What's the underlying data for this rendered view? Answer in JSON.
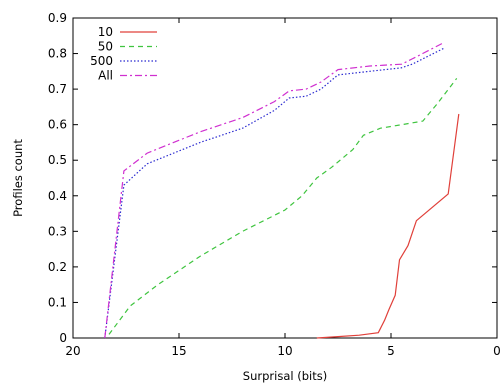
{
  "chart_data": {
    "type": "line",
    "xlabel": "Surprisal (bits)",
    "ylabel": "Profiles count",
    "xlim": [
      20,
      0
    ],
    "ylim": [
      0,
      0.9
    ],
    "x_reversed": true,
    "xticks": [
      20,
      15,
      10,
      5,
      0
    ],
    "yticks": [
      0,
      0.1,
      0.2,
      0.3,
      0.4,
      0.5,
      0.6,
      0.7,
      0.8,
      0.9
    ],
    "grid": false,
    "legend": "top-left",
    "series": [
      {
        "name": "10",
        "color": "#e0403a",
        "dash": "solid",
        "points": [
          [
            8.5,
            0
          ],
          [
            7.5,
            0.004
          ],
          [
            6.5,
            0.008
          ],
          [
            5.6,
            0.015
          ],
          [
            5.3,
            0.05
          ],
          [
            5.1,
            0.08
          ],
          [
            4.8,
            0.12
          ],
          [
            4.6,
            0.22
          ],
          [
            4.2,
            0.26
          ],
          [
            3.8,
            0.33
          ],
          [
            3.4,
            0.35
          ],
          [
            2.3,
            0.405
          ],
          [
            1.8,
            0.63
          ]
        ]
      },
      {
        "name": "50",
        "color": "#3fc43f",
        "dash": "dash",
        "points": [
          [
            18.3,
            0.01
          ],
          [
            17.3,
            0.09
          ],
          [
            16,
            0.15
          ],
          [
            14,
            0.23
          ],
          [
            12,
            0.3
          ],
          [
            10,
            0.36
          ],
          [
            9.2,
            0.4
          ],
          [
            8.5,
            0.45
          ],
          [
            7.8,
            0.48
          ],
          [
            6.8,
            0.53
          ],
          [
            6.3,
            0.57
          ],
          [
            5.5,
            0.59
          ],
          [
            4.5,
            0.6
          ],
          [
            3.5,
            0.61
          ],
          [
            2.8,
            0.66
          ],
          [
            1.9,
            0.73
          ]
        ]
      },
      {
        "name": "500",
        "color": "#2a2ad0",
        "dash": "dot",
        "points": [
          [
            18.5,
            0
          ],
          [
            17.6,
            0.43
          ],
          [
            16.5,
            0.49
          ],
          [
            14,
            0.55
          ],
          [
            12,
            0.59
          ],
          [
            10.5,
            0.64
          ],
          [
            9.8,
            0.675
          ],
          [
            9,
            0.68
          ],
          [
            8.3,
            0.7
          ],
          [
            7.5,
            0.74
          ],
          [
            6,
            0.75
          ],
          [
            4.5,
            0.76
          ],
          [
            4,
            0.77
          ],
          [
            2.5,
            0.815
          ]
        ]
      },
      {
        "name": "All",
        "color": "#d030d0",
        "dash": "dashdot",
        "points": [
          [
            18.5,
            0
          ],
          [
            17.6,
            0.47
          ],
          [
            16.5,
            0.52
          ],
          [
            14,
            0.58
          ],
          [
            12,
            0.62
          ],
          [
            10.5,
            0.665
          ],
          [
            9.8,
            0.695
          ],
          [
            9,
            0.7
          ],
          [
            8.3,
            0.72
          ],
          [
            7.5,
            0.755
          ],
          [
            6,
            0.765
          ],
          [
            4.5,
            0.77
          ],
          [
            4,
            0.785
          ],
          [
            2.6,
            0.828
          ]
        ]
      }
    ]
  }
}
